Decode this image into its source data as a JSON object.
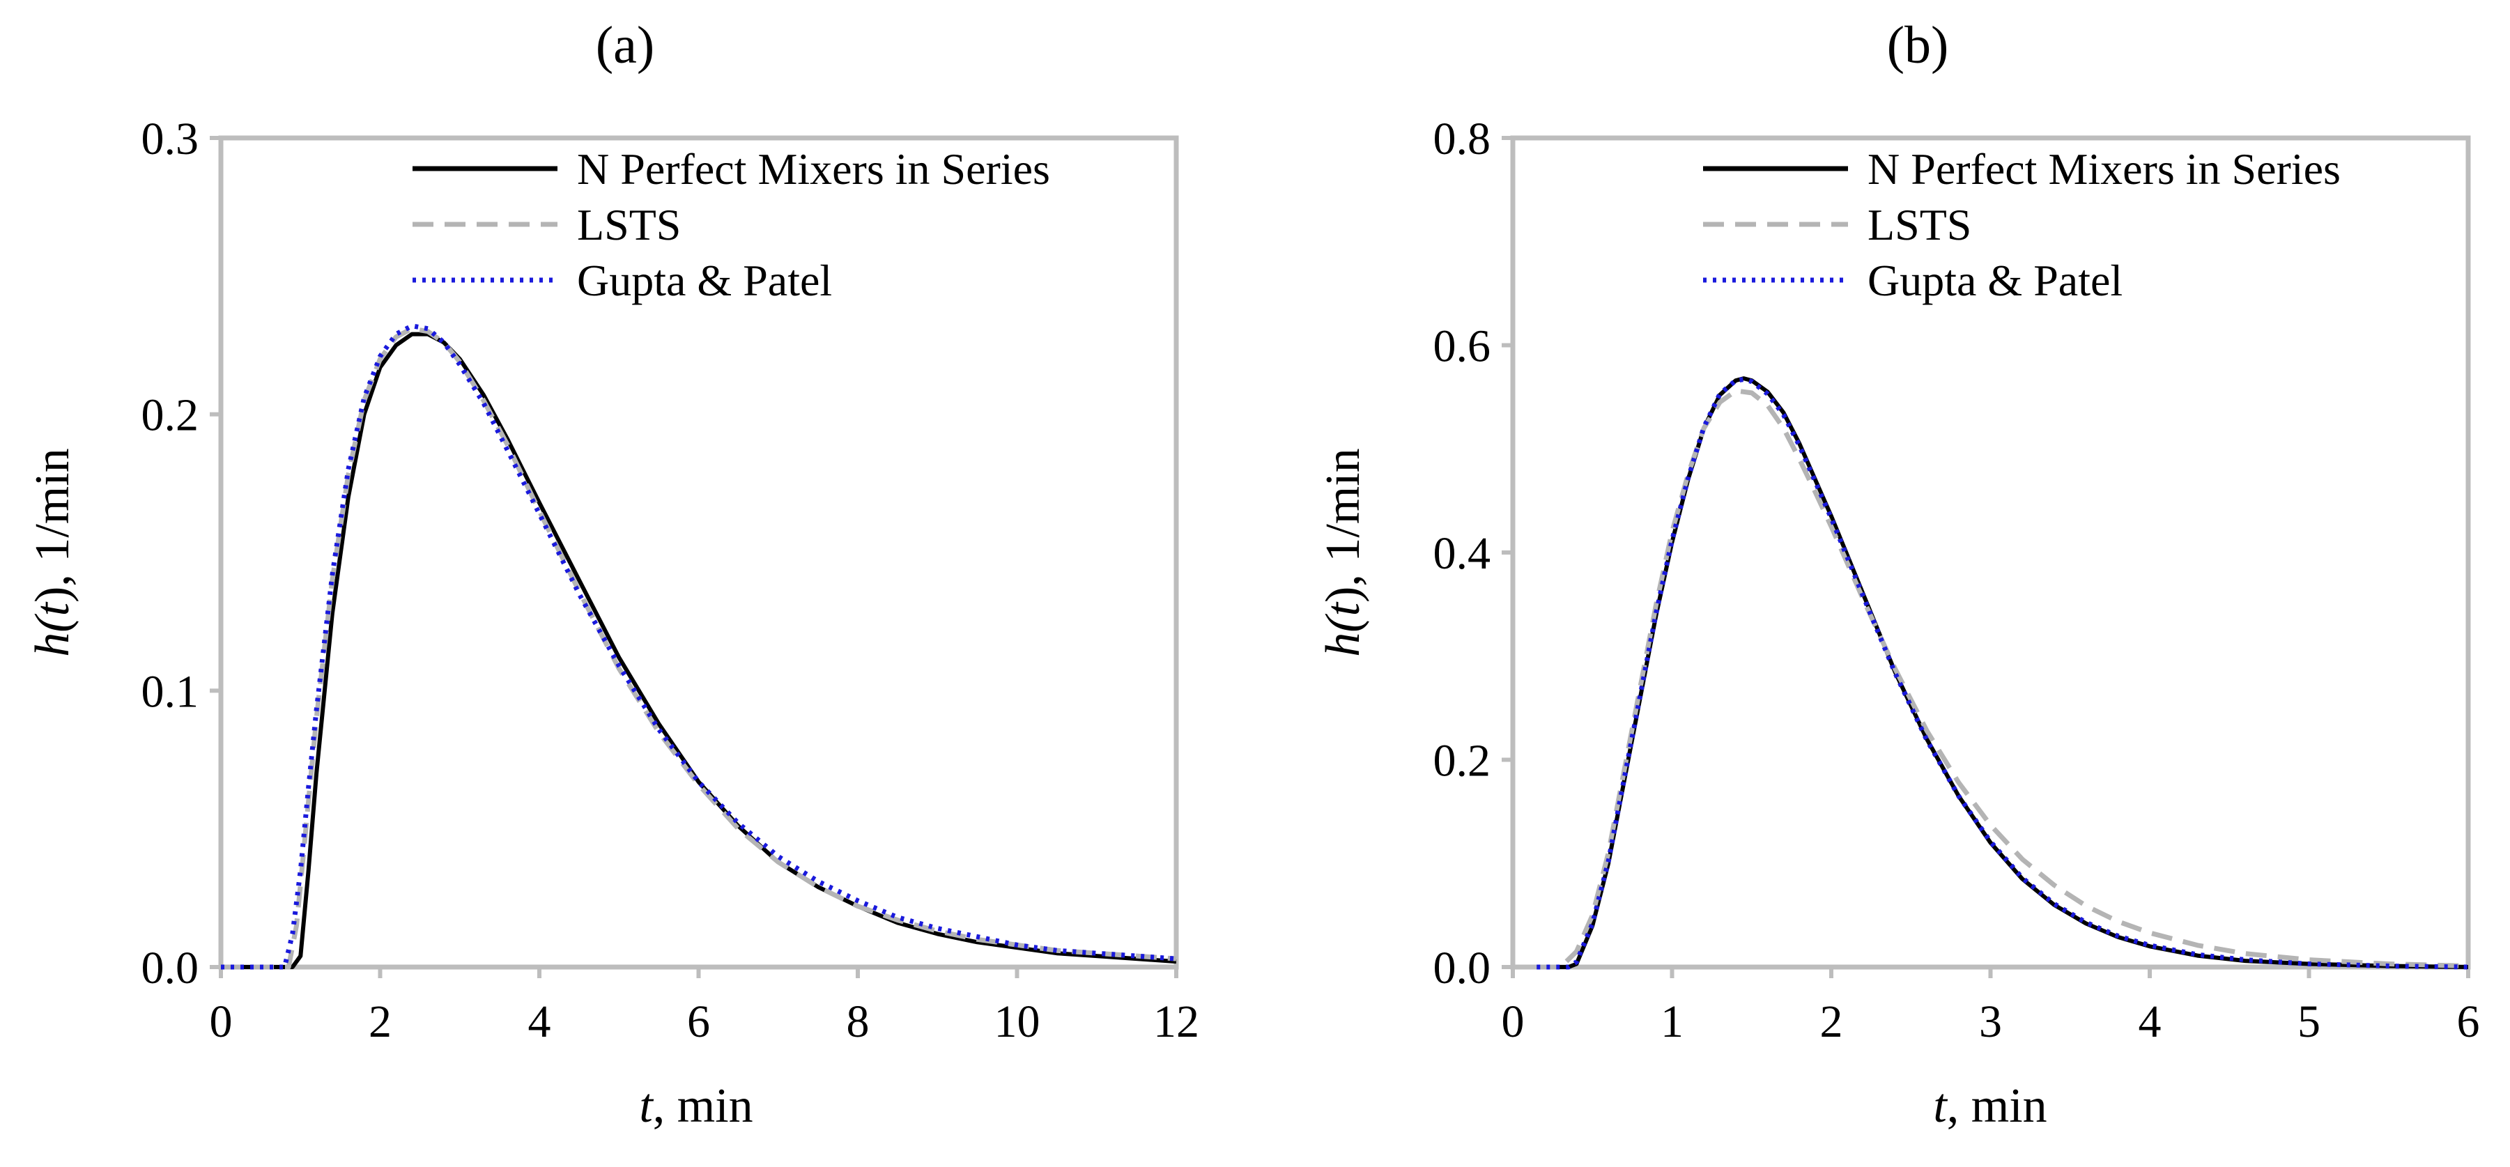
{
  "chart_data": [
    {
      "type": "line",
      "panel": "(a)",
      "title": "(a)",
      "xlabel_var": "t",
      "xlabel_rest": ", min",
      "ylabel_var_a": "h(",
      "ylabel_var_b": "t",
      "ylabel_var_c": ")",
      "ylabel_rest": ", 1/min",
      "xlim": [
        0,
        12
      ],
      "ylim": [
        0,
        0.3
      ],
      "xticks": [
        0,
        2,
        4,
        6,
        8,
        10,
        12
      ],
      "yticks": [
        0.0,
        0.1,
        0.2,
        0.3
      ],
      "xtick_labels": [
        "0",
        "2",
        "4",
        "6",
        "8",
        "10",
        "12"
      ],
      "ytick_labels": [
        "0.0",
        "0.1",
        "0.2",
        "0.3"
      ],
      "grid": false,
      "legend": "top-right",
      "series": [
        {
          "name": "N Perfect Mixers in Series",
          "style": "solid",
          "color": "#000000",
          "x": [
            0,
            0.9,
            1.0,
            1.1,
            1.2,
            1.4,
            1.6,
            1.8,
            2.0,
            2.2,
            2.4,
            2.6,
            2.8,
            3.0,
            3.3,
            3.6,
            4.0,
            4.5,
            5.0,
            5.5,
            6.0,
            6.5,
            7.0,
            7.5,
            8.0,
            8.5,
            9.0,
            9.5,
            10.0,
            10.5,
            11.0,
            11.5,
            12.0
          ],
          "y": [
            0,
            0,
            0.004,
            0.035,
            0.07,
            0.128,
            0.17,
            0.2,
            0.217,
            0.225,
            0.229,
            0.229,
            0.226,
            0.22,
            0.207,
            0.191,
            0.168,
            0.14,
            0.112,
            0.088,
            0.067,
            0.051,
            0.038,
            0.029,
            0.022,
            0.016,
            0.012,
            0.009,
            0.007,
            0.005,
            0.004,
            0.003,
            0.002
          ]
        },
        {
          "name": "LSTS",
          "style": "dashed",
          "color": "#b4b4b4",
          "x": [
            0,
            0.85,
            0.95,
            1.0,
            1.1,
            1.2,
            1.4,
            1.6,
            1.8,
            2.0,
            2.2,
            2.4,
            2.6,
            2.8,
            3.0,
            3.3,
            3.6,
            4.0,
            4.5,
            5.0,
            5.5,
            6.0,
            6.5,
            7.0,
            7.5,
            8.0,
            8.5,
            9.0,
            9.5,
            10.0,
            10.5,
            11.0,
            11.5,
            12.0
          ],
          "y": [
            0,
            0,
            0.015,
            0.03,
            0.06,
            0.09,
            0.14,
            0.178,
            0.205,
            0.22,
            0.228,
            0.231,
            0.23,
            0.226,
            0.219,
            0.205,
            0.189,
            0.165,
            0.136,
            0.108,
            0.085,
            0.066,
            0.05,
            0.038,
            0.029,
            0.022,
            0.017,
            0.013,
            0.01,
            0.008,
            0.006,
            0.005,
            0.004,
            0.003
          ]
        },
        {
          "name": "Gupta & Patel",
          "style": "dotted",
          "color": "#1a1adc",
          "x": [
            0,
            0.8,
            0.9,
            1.0,
            1.1,
            1.2,
            1.4,
            1.6,
            1.8,
            2.0,
            2.2,
            2.4,
            2.6,
            2.8,
            3.0,
            3.3,
            3.6,
            4.0,
            4.5,
            5.0,
            5.5,
            6.0,
            6.5,
            7.0,
            7.5,
            8.0,
            8.5,
            9.0,
            9.5,
            10.0,
            10.5,
            11.0,
            11.5,
            12.0
          ],
          "y": [
            0,
            0,
            0.012,
            0.035,
            0.065,
            0.093,
            0.142,
            0.18,
            0.206,
            0.221,
            0.229,
            0.232,
            0.231,
            0.226,
            0.218,
            0.204,
            0.187,
            0.164,
            0.135,
            0.109,
            0.086,
            0.067,
            0.052,
            0.04,
            0.031,
            0.024,
            0.018,
            0.014,
            0.011,
            0.008,
            0.006,
            0.005,
            0.004,
            0.003
          ]
        }
      ]
    },
    {
      "type": "line",
      "panel": "(b)",
      "title": "(b)",
      "xlabel_var": "t",
      "xlabel_rest": ", min",
      "ylabel_var_a": "h(",
      "ylabel_var_b": "t",
      "ylabel_var_c": ")",
      "ylabel_rest": ", 1/min",
      "xlim": [
        0,
        6
      ],
      "ylim": [
        0,
        0.8
      ],
      "xticks": [
        0,
        1,
        2,
        3,
        4,
        5,
        6
      ],
      "yticks": [
        0.0,
        0.2,
        0.4,
        0.6,
        0.8
      ],
      "xtick_labels": [
        "0",
        "1",
        "2",
        "3",
        "4",
        "5",
        "6"
      ],
      "ytick_labels": [
        "0.0",
        "0.2",
        "0.4",
        "0.6",
        "0.8"
      ],
      "grid": false,
      "legend": "top-right",
      "series": [
        {
          "name": "N Perfect Mixers in Series",
          "style": "solid",
          "color": "#000000",
          "x": [
            0.15,
            0.35,
            0.4,
            0.5,
            0.6,
            0.7,
            0.8,
            0.9,
            1.0,
            1.1,
            1.2,
            1.3,
            1.4,
            1.45,
            1.5,
            1.6,
            1.7,
            1.8,
            1.9,
            2.0,
            2.2,
            2.4,
            2.6,
            2.8,
            3.0,
            3.2,
            3.4,
            3.6,
            3.8,
            4.0,
            4.3,
            4.6,
            5.0,
            5.5,
            6.0
          ],
          "y": [
            0,
            0,
            0.003,
            0.04,
            0.1,
            0.18,
            0.26,
            0.34,
            0.41,
            0.47,
            0.52,
            0.552,
            0.566,
            0.568,
            0.566,
            0.555,
            0.535,
            0.505,
            0.47,
            0.435,
            0.36,
            0.285,
            0.22,
            0.165,
            0.12,
            0.085,
            0.06,
            0.042,
            0.029,
            0.02,
            0.011,
            0.006,
            0.003,
            0.001,
            0
          ]
        },
        {
          "name": "LSTS",
          "style": "dashed",
          "color": "#b4b4b4",
          "x": [
            0.15,
            0.3,
            0.4,
            0.5,
            0.6,
            0.7,
            0.8,
            0.9,
            1.0,
            1.1,
            1.2,
            1.3,
            1.4,
            1.5,
            1.6,
            1.7,
            1.8,
            1.9,
            2.0,
            2.2,
            2.4,
            2.6,
            2.8,
            3.0,
            3.2,
            3.4,
            3.6,
            3.8,
            4.0,
            4.3,
            4.6,
            5.0,
            5.5,
            6.0
          ],
          "y": [
            0,
            0,
            0.015,
            0.05,
            0.11,
            0.19,
            0.27,
            0.35,
            0.42,
            0.475,
            0.52,
            0.545,
            0.556,
            0.554,
            0.542,
            0.52,
            0.49,
            0.458,
            0.425,
            0.355,
            0.288,
            0.228,
            0.178,
            0.137,
            0.104,
            0.079,
            0.059,
            0.044,
            0.033,
            0.021,
            0.013,
            0.007,
            0.003,
            0.001
          ]
        },
        {
          "name": "Gupta & Patel",
          "style": "dotted",
          "color": "#1a1adc",
          "x": [
            0.15,
            0.35,
            0.4,
            0.5,
            0.6,
            0.7,
            0.8,
            0.9,
            1.0,
            1.1,
            1.2,
            1.3,
            1.4,
            1.45,
            1.5,
            1.6,
            1.7,
            1.8,
            1.9,
            2.0,
            2.2,
            2.4,
            2.6,
            2.8,
            3.0,
            3.2,
            3.4,
            3.6,
            3.8,
            4.0,
            4.3,
            4.6,
            5.0,
            5.5,
            6.0
          ],
          "y": [
            0,
            0,
            0.005,
            0.042,
            0.102,
            0.182,
            0.262,
            0.342,
            0.412,
            0.471,
            0.521,
            0.553,
            0.566,
            0.567,
            0.565,
            0.553,
            0.533,
            0.503,
            0.468,
            0.433,
            0.358,
            0.284,
            0.219,
            0.165,
            0.121,
            0.086,
            0.061,
            0.043,
            0.03,
            0.021,
            0.012,
            0.007,
            0.003,
            0.001,
            0
          ]
        }
      ]
    }
  ]
}
